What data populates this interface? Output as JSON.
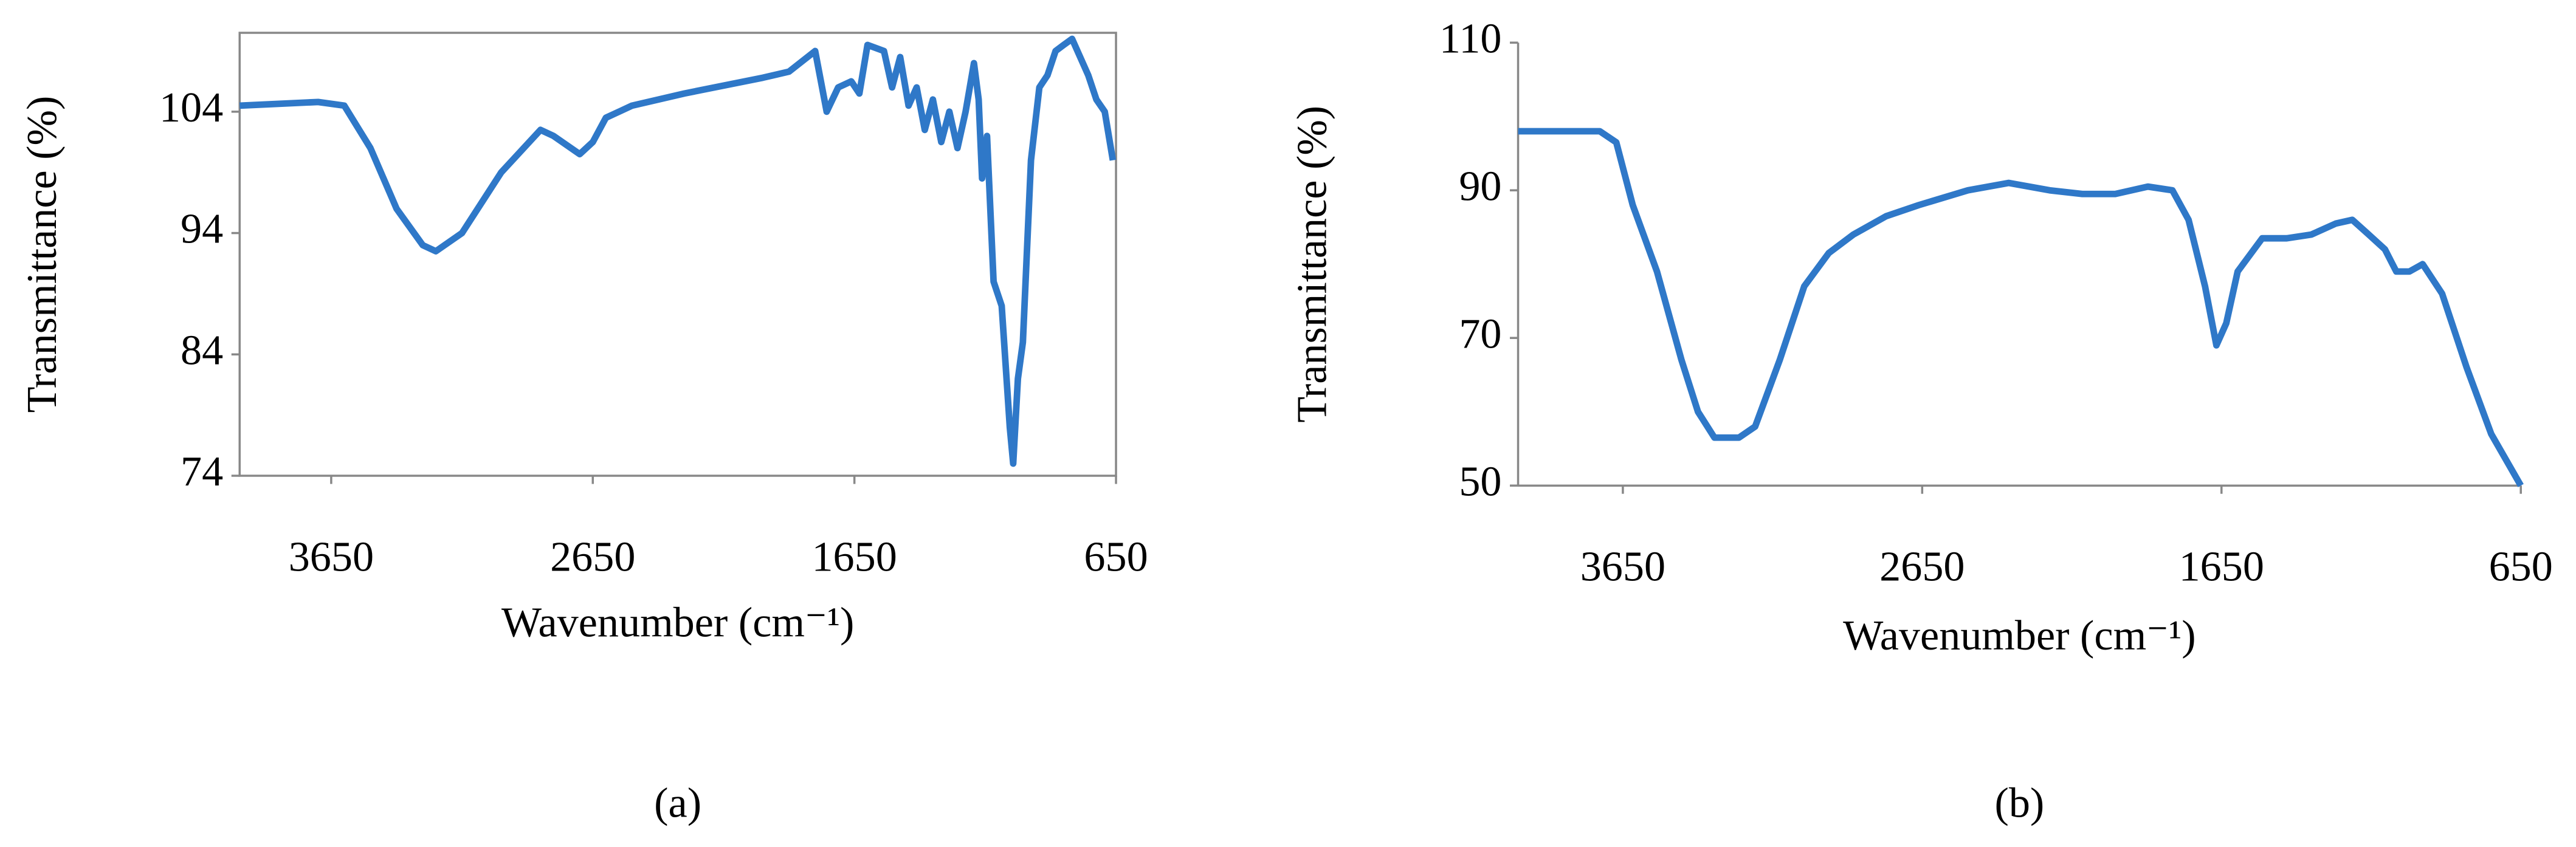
{
  "chart_data": [
    {
      "type": "line",
      "caption": "(a)",
      "xlabel": "Wavenumber (cm⁻¹)",
      "ylabel": "Transmittance (%)",
      "xlim": [
        4000,
        650
      ],
      "xticks": [
        3650,
        2650,
        1650,
        650
      ],
      "ylim": [
        74,
        110.5
      ],
      "yticks": [
        74,
        84,
        94,
        104
      ],
      "box": true,
      "color": "#2f78c8",
      "x": [
        4000,
        3700,
        3600,
        3500,
        3400,
        3300,
        3250,
        3150,
        3000,
        2850,
        2800,
        2700,
        2650,
        2600,
        2500,
        2300,
        2000,
        1900,
        1800,
        1756,
        1712,
        1662,
        1631,
        1600,
        1537,
        1506,
        1475,
        1443,
        1412,
        1381,
        1350,
        1318,
        1287,
        1256,
        1225,
        1193,
        1175,
        1162,
        1143,
        1118,
        1087,
        1056,
        1043,
        1025,
        1006,
        975,
        943,
        912,
        881,
        850,
        818,
        787,
        756,
        725,
        693,
        662
      ],
      "values": [
        104.5,
        104.8,
        104.5,
        101,
        96,
        93,
        92.5,
        94,
        99,
        102.5,
        102,
        100.5,
        101.5,
        103.5,
        104.5,
        105.5,
        106.8,
        107.3,
        109,
        104,
        106,
        106.5,
        105.5,
        109.5,
        109,
        106,
        108.5,
        104.5,
        106,
        102.5,
        105,
        101.5,
        104,
        101,
        104,
        108,
        105,
        98.5,
        102,
        90,
        88,
        78,
        75,
        82,
        85,
        100,
        106,
        107,
        109,
        109.5,
        110,
        108.5,
        107,
        105,
        104,
        100
      ]
    },
    {
      "type": "line",
      "caption": "(b)",
      "xlabel": "Wavenumber (cm⁻¹)",
      "ylabel": "Transmittance (%)",
      "xlim": [
        4000,
        650
      ],
      "xticks": [
        3650,
        2650,
        1650,
        650
      ],
      "ylim": [
        50,
        110
      ],
      "yticks": [
        50,
        70,
        90,
        110
      ],
      "box": false,
      "color": "#2f78c8",
      "x": [
        4000,
        3727,
        3672,
        3617,
        3536,
        3454,
        3399,
        3344,
        3262,
        3208,
        3126,
        3044,
        2962,
        2880,
        2770,
        2661,
        2497,
        2361,
        2224,
        2115,
        2005,
        1896,
        1814,
        1760,
        1705,
        1667,
        1634,
        1596,
        1514,
        1432,
        1350,
        1268,
        1213,
        1158,
        1104,
        1066,
        1022,
        978,
        913,
        831,
        749,
        650
      ],
      "values": [
        98,
        98,
        96.5,
        88,
        79,
        67,
        60,
        56.5,
        56.5,
        58,
        67,
        77,
        81.5,
        84,
        86.5,
        88,
        90,
        91,
        90,
        89.5,
        89.5,
        90.5,
        90,
        86,
        77,
        69,
        72,
        79,
        83.5,
        83.5,
        84,
        85.5,
        86,
        84,
        82,
        79,
        79,
        80,
        76,
        66,
        57,
        50
      ]
    }
  ]
}
